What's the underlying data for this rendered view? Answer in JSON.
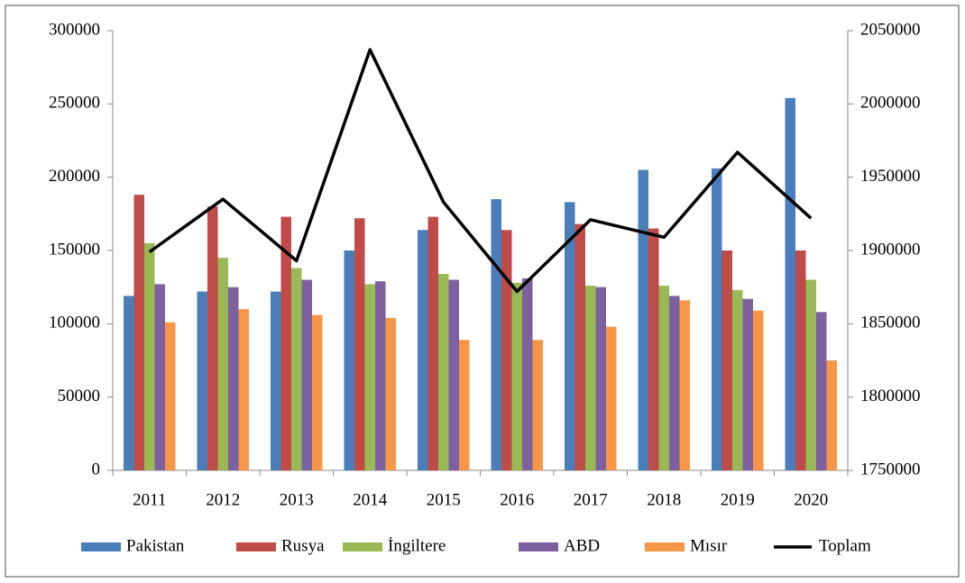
{
  "chart_data": {
    "type": "bar",
    "categories": [
      "2011",
      "2012",
      "2013",
      "2014",
      "2015",
      "2016",
      "2017",
      "2018",
      "2019",
      "2020"
    ],
    "series": [
      {
        "name": "Pakistan",
        "color": "#4a7ebb",
        "values": [
          119000,
          122000,
          122000,
          150000,
          164000,
          185000,
          183000,
          205000,
          206000,
          254000
        ]
      },
      {
        "name": "Rusya",
        "color": "#be4b48",
        "values": [
          188000,
          180000,
          173000,
          172000,
          173000,
          164000,
          168000,
          165000,
          150000,
          150000
        ]
      },
      {
        "name": "İngiltere",
        "color": "#98b954",
        "values": [
          155000,
          145000,
          138000,
          127000,
          134000,
          128000,
          126000,
          126000,
          123000,
          130000
        ]
      },
      {
        "name": "ABD",
        "color": "#7d60a0",
        "values": [
          127000,
          125000,
          130000,
          129000,
          130000,
          131000,
          125000,
          119000,
          117000,
          108000
        ]
      },
      {
        "name": "Mısır",
        "color": "#f79646",
        "values": [
          101000,
          110000,
          106000,
          104000,
          89000,
          89000,
          98000,
          116000,
          109000,
          75000
        ]
      },
      {
        "name": "Toplam",
        "color": "#000000",
        "type": "line",
        "axis": "y2",
        "values": [
          1899000,
          1935000,
          1893000,
          2037000,
          1933000,
          1872000,
          1921000,
          1909000,
          1967000,
          1922000
        ]
      }
    ],
    "ylim": [
      0,
      300000
    ],
    "yticks": [
      0,
      50000,
      100000,
      150000,
      200000,
      250000,
      300000
    ],
    "y2lim": [
      1750000,
      2050000
    ],
    "y2ticks": [
      1750000,
      1800000,
      1850000,
      1900000,
      1950000,
      2000000,
      2050000
    ],
    "legend": "bottom"
  }
}
